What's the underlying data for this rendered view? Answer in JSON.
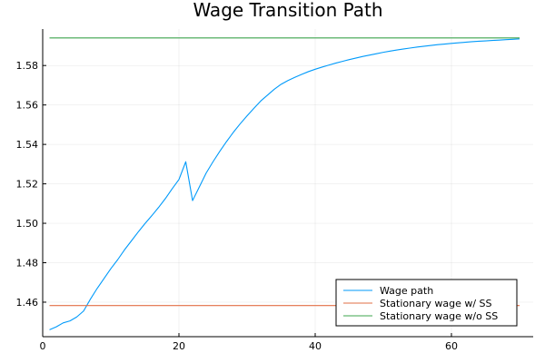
{
  "chart_data": {
    "type": "line",
    "title": "Wage Transition Path",
    "xlabel": "",
    "ylabel": "",
    "xlim": [
      0,
      72
    ],
    "ylim": [
      1.4425,
      1.5985
    ],
    "xticks": [
      0,
      20,
      40,
      60
    ],
    "yticks": [
      1.46,
      1.48,
      1.5,
      1.52,
      1.54,
      1.56,
      1.58
    ],
    "xtick_labels": [
      "0",
      "20",
      "40",
      "60"
    ],
    "ytick_labels": [
      "1.46",
      "1.48",
      "1.50",
      "1.52",
      "1.54",
      "1.56",
      "1.58"
    ],
    "grid": true,
    "legend_position": "bottom-right",
    "series": [
      {
        "name": "Wage path",
        "color": "#009AFA",
        "x": [
          1,
          2,
          3,
          4,
          5,
          6,
          7,
          8,
          9,
          10,
          11,
          12,
          13,
          14,
          15,
          16,
          17,
          18,
          19,
          20,
          21,
          22,
          23,
          24,
          25,
          26,
          27,
          28,
          29,
          30,
          31,
          32,
          33,
          34,
          35,
          36,
          37,
          38,
          39,
          40,
          41,
          42,
          43,
          44,
          45,
          46,
          47,
          48,
          49,
          50,
          51,
          52,
          53,
          54,
          55,
          56,
          57,
          58,
          59,
          60,
          61,
          62,
          63,
          64,
          65,
          66,
          67,
          68,
          69,
          70
        ],
        "y": [
          1.446,
          1.4475,
          1.4495,
          1.4505,
          1.4525,
          1.4555,
          1.4615,
          1.467,
          1.472,
          1.477,
          1.4815,
          1.4865,
          1.491,
          1.4955,
          1.4998,
          1.5038,
          1.508,
          1.5125,
          1.5175,
          1.5222,
          1.5312,
          1.5115,
          1.5185,
          1.5255,
          1.5312,
          1.5365,
          1.5415,
          1.5462,
          1.5505,
          1.5545,
          1.5583,
          1.562,
          1.565,
          1.568,
          1.5705,
          1.5724,
          1.574,
          1.5755,
          1.5769,
          1.5781,
          1.5792,
          1.5802,
          1.5812,
          1.5821,
          1.583,
          1.5838,
          1.5846,
          1.5853,
          1.586,
          1.5867,
          1.5873,
          1.5879,
          1.5884,
          1.5889,
          1.5894,
          1.5898,
          1.5902,
          1.5906,
          1.5909,
          1.5912,
          1.5915,
          1.5918,
          1.5921,
          1.5923,
          1.5925,
          1.5927,
          1.5929,
          1.5931,
          1.5933,
          1.5935
        ]
      },
      {
        "name": "Stationary wage w/ SS",
        "color": "#E26F46",
        "x": [
          1,
          70
        ],
        "y": [
          1.4583,
          1.4583
        ]
      },
      {
        "name": "Stationary wage w/o SS",
        "color": "#3DA44D",
        "x": [
          1,
          70
        ],
        "y": [
          1.594,
          1.594
        ]
      }
    ]
  }
}
